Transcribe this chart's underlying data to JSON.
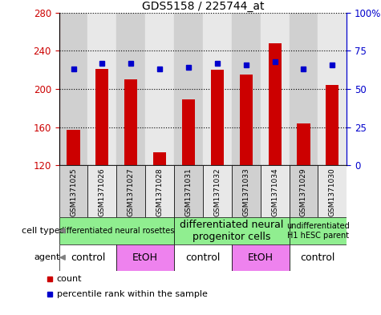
{
  "title": "GDS5158 / 225744_at",
  "samples": [
    "GSM1371025",
    "GSM1371026",
    "GSM1371027",
    "GSM1371028",
    "GSM1371031",
    "GSM1371032",
    "GSM1371033",
    "GSM1371034",
    "GSM1371029",
    "GSM1371030"
  ],
  "counts": [
    157,
    221,
    210,
    134,
    189,
    220,
    215,
    248,
    164,
    204
  ],
  "percentile_ranks": [
    63,
    67,
    67,
    63,
    64,
    67,
    66,
    68,
    63,
    66
  ],
  "y_min": 120,
  "y_max": 280,
  "y_ticks": [
    120,
    160,
    200,
    240,
    280
  ],
  "right_y_ticks": [
    0,
    25,
    50,
    75,
    100
  ],
  "right_y_tick_labels": [
    "0",
    "25",
    "50",
    "75",
    "100%"
  ],
  "bar_color": "#cc0000",
  "dot_color": "#0000cc",
  "bar_width": 0.45,
  "col_bg_odd": "#d0d0d0",
  "col_bg_even": "#e8e8e8",
  "cell_type_groups": [
    {
      "label": "differentiated neural rosettes",
      "start": 0,
      "end": 3,
      "fontsize": 7
    },
    {
      "label": "differentiated neural\nprogenitor cells",
      "start": 4,
      "end": 7,
      "fontsize": 9
    },
    {
      "label": "undifferentiated\nH1 hESC parent",
      "start": 8,
      "end": 9,
      "fontsize": 7
    }
  ],
  "agent_groups": [
    {
      "label": "control",
      "start": 0,
      "end": 1,
      "bg": "#ffffff"
    },
    {
      "label": "EtOH",
      "start": 2,
      "end": 3,
      "bg": "#ee82ee"
    },
    {
      "label": "control",
      "start": 4,
      "end": 5,
      "bg": "#ffffff"
    },
    {
      "label": "EtOH",
      "start": 6,
      "end": 7,
      "bg": "#ee82ee"
    },
    {
      "label": "control",
      "start": 8,
      "end": 9,
      "bg": "#ffffff"
    }
  ],
  "cell_type_bg": "#90ee90",
  "left_axis_color": "#cc0000",
  "right_axis_color": "#0000cc",
  "legend_count_color": "#cc0000",
  "legend_pct_color": "#0000cc"
}
